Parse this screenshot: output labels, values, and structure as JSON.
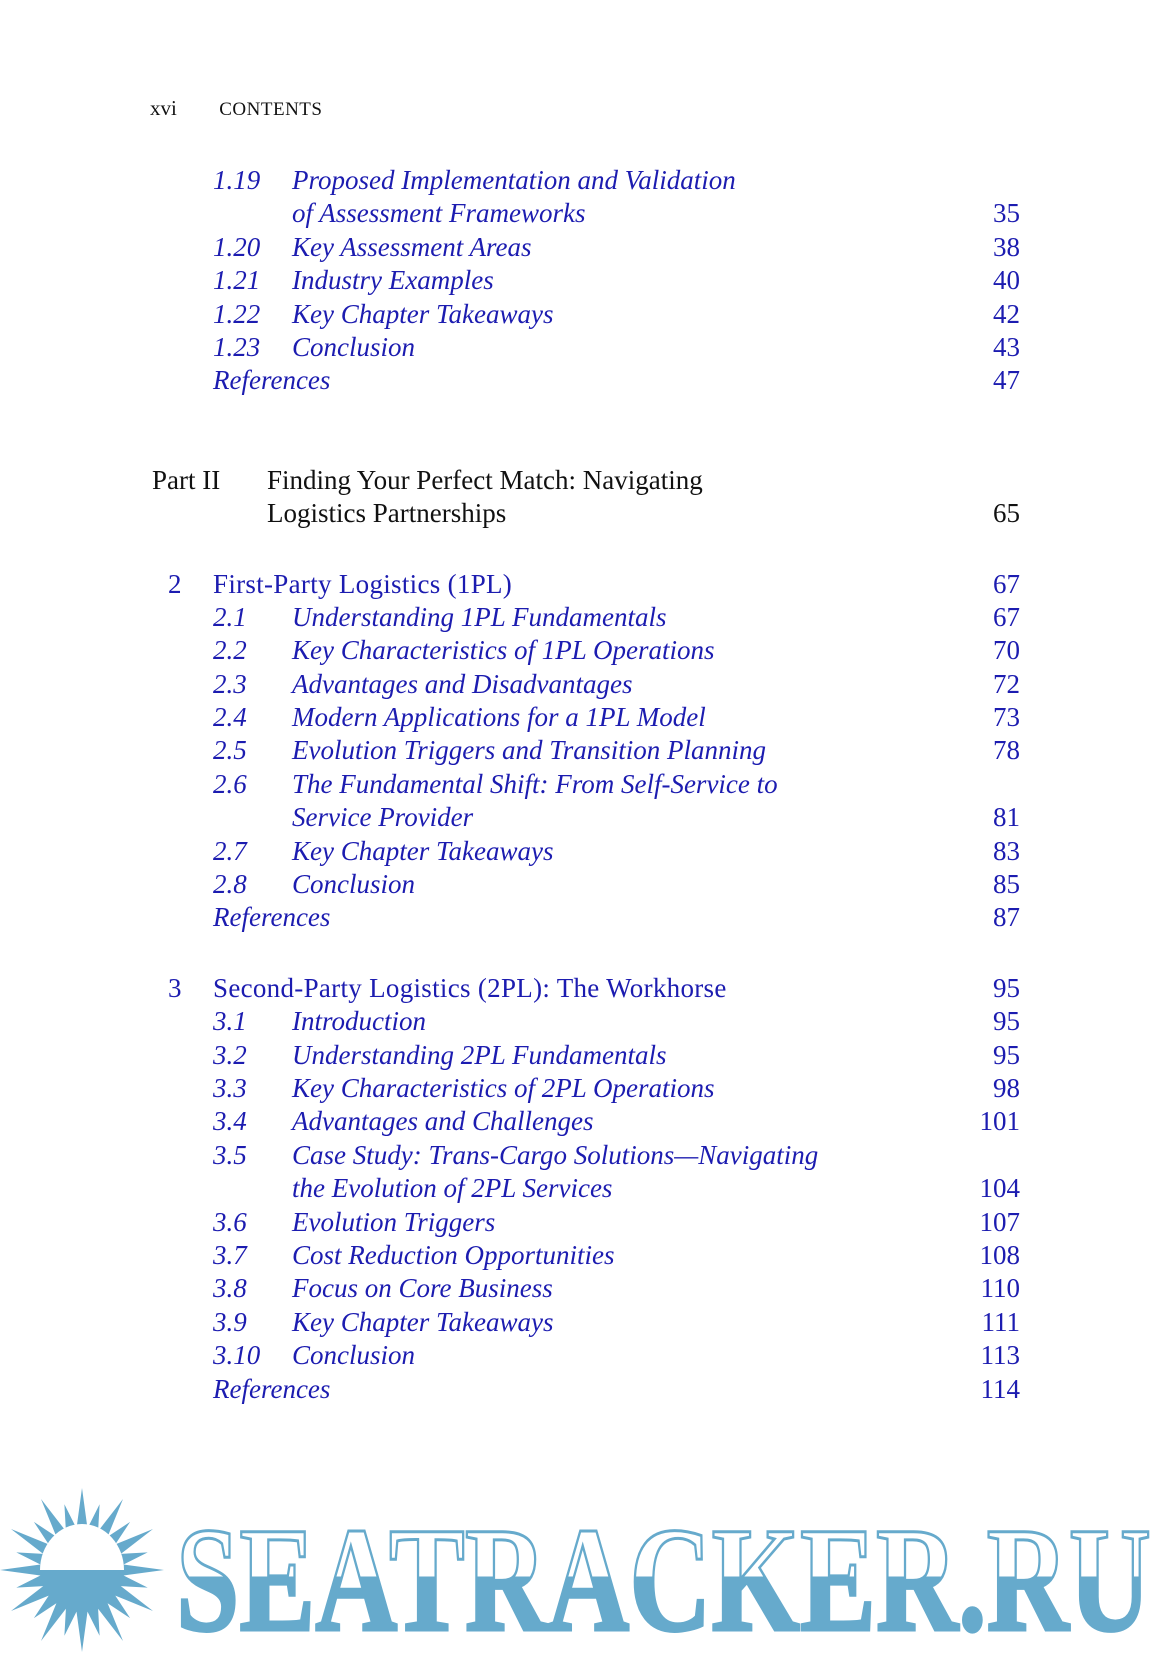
{
  "header": {
    "folio": "xvi",
    "running_title": "CONTENTS"
  },
  "toc": {
    "pre": [
      {
        "num": "1.19",
        "title": "Proposed Implementation and Validation",
        "page": ""
      },
      {
        "num": "",
        "title": "of Assessment Frameworks",
        "page": "35"
      },
      {
        "num": "1.20",
        "title": "Key Assessment Areas",
        "page": "38"
      },
      {
        "num": "1.21",
        "title": "Industry Examples",
        "page": "40"
      },
      {
        "num": "1.22",
        "title": "Key Chapter Takeaways",
        "page": "42"
      },
      {
        "num": "1.23",
        "title": "Conclusion",
        "page": "43"
      },
      {
        "num": "",
        "title": "References",
        "page": "47",
        "refs": true
      }
    ],
    "part": {
      "label": "Part II",
      "title_line1": "Finding Your Perfect Match: Navigating",
      "title_line2": "Logistics Partnerships",
      "page": "65"
    },
    "chapters": [
      {
        "num": "2",
        "title": "First-Party Logistics (1PL)",
        "page": "67",
        "sections": [
          {
            "num": "2.1",
            "title": "Understanding 1PL Fundamentals",
            "page": "67"
          },
          {
            "num": "2.2",
            "title": "Key Characteristics of 1PL Operations",
            "page": "70"
          },
          {
            "num": "2.3",
            "title": "Advantages and Disadvantages",
            "page": "72"
          },
          {
            "num": "2.4",
            "title": "Modern Applications for a 1PL Model",
            "page": "73"
          },
          {
            "num": "2.5",
            "title": "Evolution Triggers and Transition Planning",
            "page": "78"
          },
          {
            "num": "2.6",
            "title": "The Fundamental Shift: From Self-Service to",
            "page": ""
          },
          {
            "num": "",
            "title": "Service Provider",
            "page": "81"
          },
          {
            "num": "2.7",
            "title": "Key Chapter Takeaways",
            "page": "83"
          },
          {
            "num": "2.8",
            "title": "Conclusion",
            "page": "85"
          },
          {
            "num": "",
            "title": "References",
            "page": "87",
            "refs": true
          }
        ]
      },
      {
        "num": "3",
        "title": "Second-Party Logistics (2PL): The Workhorse",
        "page": "95",
        "sections": [
          {
            "num": "3.1",
            "title": "Introduction",
            "page": "95"
          },
          {
            "num": "3.2",
            "title": "Understanding 2PL Fundamentals",
            "page": "95"
          },
          {
            "num": "3.3",
            "title": "Key Characteristics of 2PL Operations",
            "page": "98"
          },
          {
            "num": "3.4",
            "title": "Advantages and Challenges",
            "page": "101"
          },
          {
            "num": "3.5",
            "title": "Case Study: Trans-Cargo Solutions—Navigating",
            "page": ""
          },
          {
            "num": "",
            "title": "the Evolution of 2PL Services",
            "page": "104"
          },
          {
            "num": "3.6",
            "title": "Evolution Triggers",
            "page": "107"
          },
          {
            "num": "3.7",
            "title": "Cost Reduction Opportunities",
            "page": "108"
          },
          {
            "num": "3.8",
            "title": "Focus on Core Business",
            "page": "110"
          },
          {
            "num": "3.9",
            "title": "Key Chapter Takeaways",
            "page": "111"
          },
          {
            "num": "3.10",
            "title": "Conclusion",
            "page": "113"
          },
          {
            "num": "",
            "title": "References",
            "page": "114",
            "refs": true
          }
        ]
      }
    ]
  },
  "watermark": {
    "text": "SEATRACKER.RU",
    "icon": "sun-icon",
    "color": "#66aacc"
  },
  "colors": {
    "link": "#1c1cb0",
    "text": "#111111"
  }
}
